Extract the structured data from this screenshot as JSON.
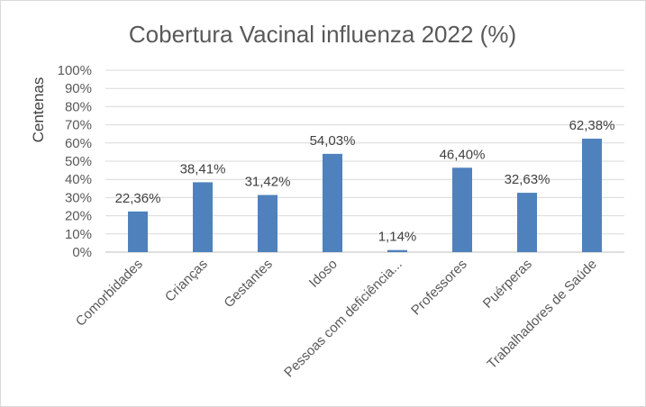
{
  "chart_data": {
    "type": "bar",
    "title": "Cobertura Vacinal influenza 2022 (%)",
    "xlabel": "",
    "ylabel": "Centenas",
    "ylim": [
      0,
      100
    ],
    "y_ticks": [
      "0%",
      "10%",
      "20%",
      "30%",
      "40%",
      "50%",
      "60%",
      "70%",
      "80%",
      "90%",
      "100%"
    ],
    "categories": [
      "Comorbidades",
      "Crianças",
      "Gestantes",
      "Idoso",
      "Pessoas com deficiência...",
      "Professores",
      "Puérperas",
      "Trabalhadores de Saúde"
    ],
    "values": [
      22.36,
      38.41,
      31.42,
      54.03,
      1.14,
      46.4,
      32.63,
      62.38
    ],
    "data_labels": [
      "22,36%",
      "38,41%",
      "31,42%",
      "54,03%",
      "1,14%",
      "46,40%",
      "32,63%",
      "62,38%"
    ],
    "bar_color": "#4f81bd",
    "grid": true,
    "legend": "none"
  }
}
